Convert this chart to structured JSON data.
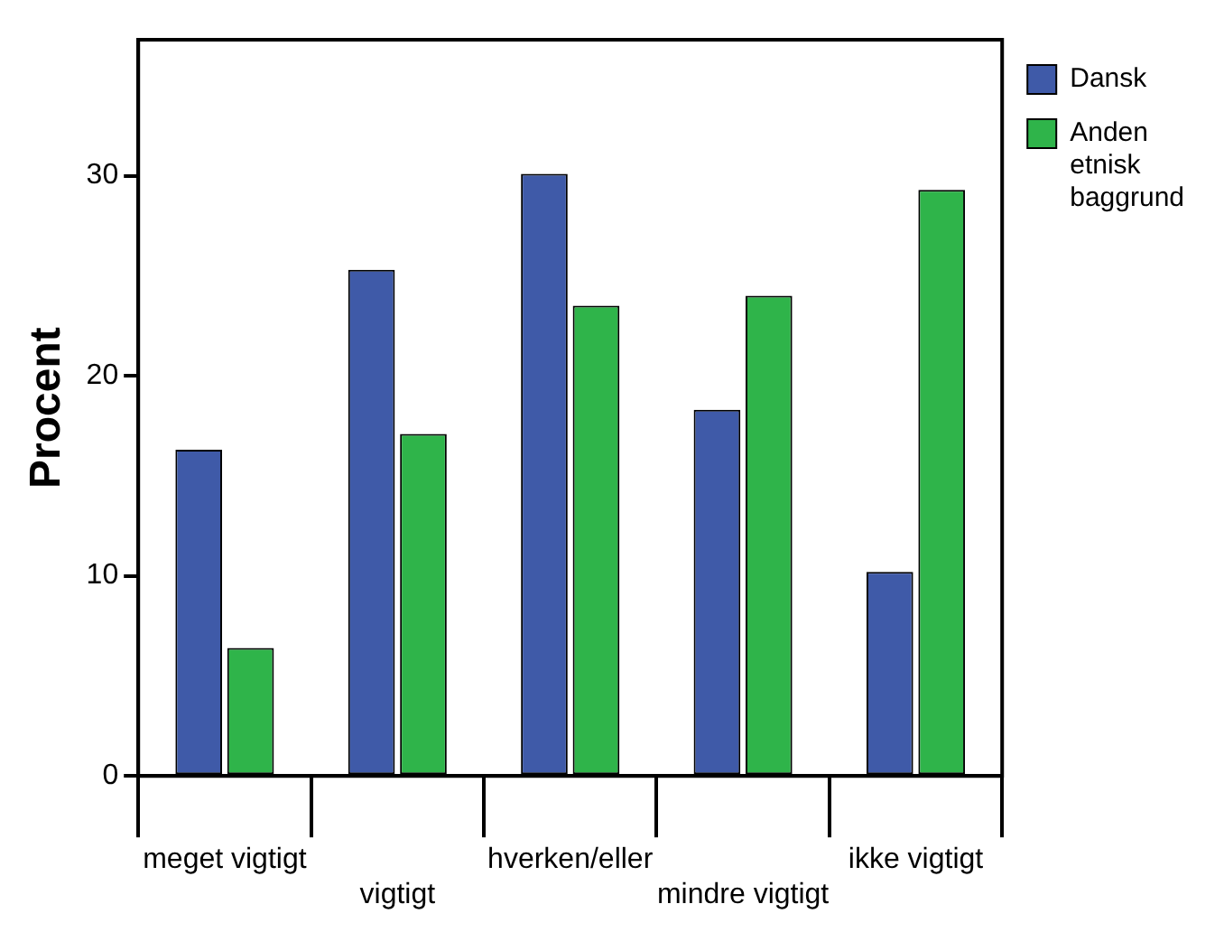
{
  "chart_data": {
    "type": "bar",
    "ylabel": "Procent",
    "categories": [
      "meget vigtigt",
      "vigtigt",
      "hverken/eller",
      "mindre vigtigt",
      "ikke vigtigt"
    ],
    "series": [
      {
        "name": "Dansk",
        "color": "#3f5aa8",
        "values": [
          16.3,
          25.3,
          30.1,
          18.3,
          10.2
        ]
      },
      {
        "name": "Anden etnisk baggrund",
        "color": "#2fb44a",
        "values": [
          6.4,
          17.1,
          23.5,
          24.0,
          29.3
        ]
      }
    ],
    "ylim": [
      0,
      36.8
    ],
    "yticks": [
      0,
      10,
      20,
      30
    ],
    "grid": false,
    "legend": "right"
  }
}
